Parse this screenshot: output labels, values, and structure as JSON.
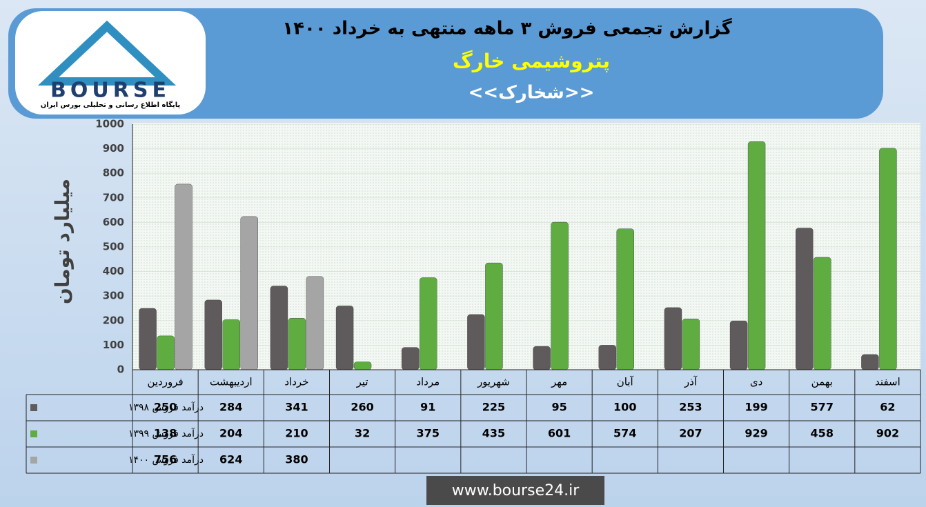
{
  "header": {
    "logo_text": "BOURSE",
    "logo_subtitle": "پایگاه اطلاع رسانی و تحلیلی بورس ایران",
    "footer": "www.bourse24.ir"
  },
  "chart_data": {
    "type": "bar",
    "title": "گزارش تجمعی فروش ۳ ماهه منتهی به خرداد ۱۴۰۰",
    "subtitle": "پتروشیمی خارگ",
    "symbol": "<<شخارک>>",
    "y_label": "میلیارد تومان",
    "categories": [
      "فروردین",
      "اردیبهشت",
      "خرداد",
      "تیر",
      "مرداد",
      "شهریور",
      "مهر",
      "آبان",
      "آذر",
      "دی",
      "بهمن",
      "اسفند"
    ],
    "series": [
      {
        "name": "درآمد فروش ۱۳۹۸",
        "color": "#5f5b5c",
        "values": [
          250,
          284,
          341,
          260,
          91,
          225,
          95,
          100,
          253,
          199,
          577,
          62
        ]
      },
      {
        "name": "درآمد فروش ۱۳۹۹",
        "color": "#5fad41",
        "values": [
          138,
          204,
          210,
          32,
          375,
          435,
          601,
          574,
          207,
          929,
          458,
          902
        ]
      },
      {
        "name": "درآمد فروش ۱۴۰۰",
        "color": "#a5a5a5",
        "values": [
          756,
          624,
          380,
          null,
          null,
          null,
          null,
          null,
          null,
          null,
          null,
          null
        ]
      }
    ],
    "ylim": [
      0,
      1000
    ],
    "yticks": [
      0,
      100,
      200,
      300,
      400,
      500,
      600,
      700,
      800,
      900,
      1000
    ],
    "grid": true
  }
}
